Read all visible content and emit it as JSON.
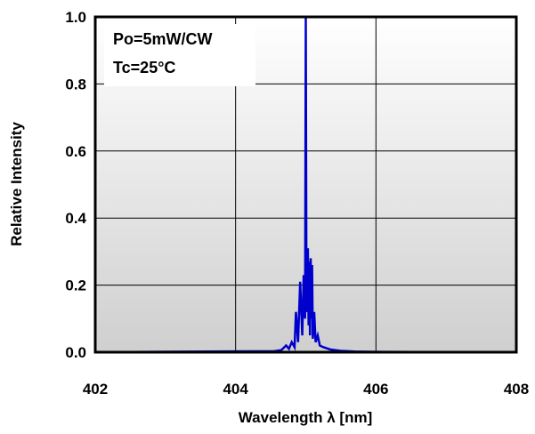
{
  "chart_data": {
    "type": "line",
    "title": "",
    "xlabel": "Wavelength λ [nm]",
    "ylabel": "Relative Intensity",
    "xlim": [
      402,
      408
    ],
    "ylim": [
      0.0,
      1.0
    ],
    "x_ticks": [
      "402",
      "404",
      "406",
      "408"
    ],
    "y_ticks": [
      "0.0",
      "0.2",
      "0.4",
      "0.6",
      "0.8",
      "1.0"
    ],
    "grid": true,
    "annotations": [
      "Po=5mW/CW",
      "Tc=25°C"
    ],
    "colors": {
      "series": "#0000cc",
      "frame": "#000000",
      "grid": "#000000"
    },
    "series": [
      {
        "x": [
          402.0,
          403.6,
          404.55,
          404.65,
          404.72,
          404.76,
          404.8,
          404.84,
          404.86,
          404.89,
          404.92,
          404.95,
          404.97,
          404.99,
          405.0,
          405.01,
          405.02,
          405.03,
          405.04,
          405.05,
          405.06,
          405.07,
          405.08,
          405.09,
          405.1,
          405.12,
          405.14,
          405.17,
          405.2,
          405.25,
          405.35,
          405.5,
          405.7,
          406.0,
          408.0
        ],
        "y": [
          0.0,
          0.002,
          0.003,
          0.006,
          0.02,
          0.01,
          0.03,
          0.015,
          0.12,
          0.03,
          0.21,
          0.05,
          0.23,
          0.1,
          1.0,
          0.12,
          0.15,
          0.31,
          0.08,
          0.27,
          0.05,
          0.28,
          0.1,
          0.26,
          0.04,
          0.12,
          0.03,
          0.05,
          0.02,
          0.015,
          0.008,
          0.004,
          0.002,
          0.001,
          0.0
        ]
      }
    ]
  }
}
